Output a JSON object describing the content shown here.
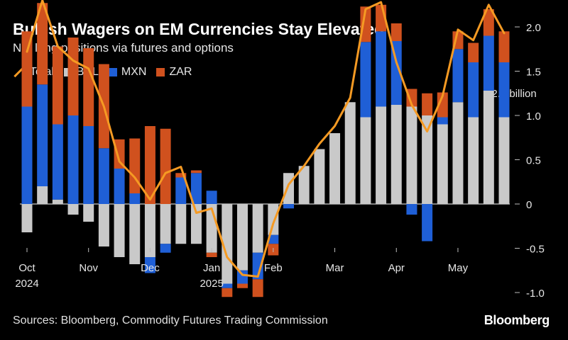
{
  "title": "Bullish Wagers on EM Currencies Stay Elevated",
  "subtitle": "Net long positions via futures and options",
  "legend": {
    "total": "Total",
    "brl": "BRL",
    "mxn": "MXN",
    "zar": "ZAR"
  },
  "source": "Sources: Bloomberg, Commodity Futures Trading Commission",
  "brand": "Bloomberg",
  "colors": {
    "BRL": "#c9c9c9",
    "MXN": "#1f5fd6",
    "ZAR": "#d0511e",
    "Total": "#f59a23"
  },
  "chart_data": {
    "type": "bar",
    "stacked": true,
    "overlay_line": "Total",
    "y_unit_label": "$2.5 billion",
    "ylim": [
      -1.0,
      2.5
    ],
    "yticks": [
      -1.0,
      -0.5,
      0,
      0.5,
      1.0,
      1.5,
      2.0
    ],
    "ytick_labels": [
      "-1.0",
      "-0.5",
      "0",
      "0.5",
      "1.0",
      "1.5",
      "2.0"
    ],
    "x_tick_labels": [
      {
        "month": "Oct",
        "year": "2024",
        "week": 0
      },
      {
        "month": "Nov",
        "year": "",
        "week": 4
      },
      {
        "month": "Dec",
        "year": "",
        "week": 8
      },
      {
        "month": "Jan",
        "year": "2025",
        "week": 12
      },
      {
        "month": "Feb",
        "year": "",
        "week": 16
      },
      {
        "month": "Mar",
        "year": "",
        "week": 20
      },
      {
        "month": "Apr",
        "year": "",
        "week": 24
      },
      {
        "month": "May",
        "year": "",
        "week": 28
      }
    ],
    "series": [
      {
        "name": "BRL",
        "values": [
          -0.32,
          0.2,
          0.05,
          -0.12,
          -0.2,
          -0.48,
          -0.6,
          -0.68,
          -0.6,
          -0.45,
          -0.45,
          -0.45,
          -0.55,
          -0.9,
          -0.75,
          -0.55,
          -0.35,
          0.35,
          0.43,
          0.62,
          0.8,
          1.15,
          0.98,
          1.1,
          1.12,
          1.1,
          1.0,
          0.9,
          1.15,
          0.98,
          1.28,
          0.98
        ]
      },
      {
        "name": "MXN",
        "values": [
          1.1,
          1.15,
          0.85,
          1.0,
          0.88,
          0.63,
          0.4,
          0.12,
          -0.18,
          -0.1,
          0.3,
          0.35,
          0.15,
          -0.05,
          -0.15,
          -0.3,
          -0.1,
          -0.05,
          0,
          0,
          0,
          0,
          0.85,
          0.85,
          0.72,
          -0.12,
          -0.42,
          0.08,
          0.6,
          0.62,
          0.62,
          0.62
        ]
      },
      {
        "name": "ZAR",
        "values": [
          0.85,
          0.92,
          0.88,
          0.88,
          0.88,
          0.95,
          0.33,
          0.62,
          0.88,
          0.85,
          0.05,
          0.03,
          -0.05,
          -0.1,
          -0.05,
          -0.2,
          -0.13,
          0,
          0,
          0,
          0,
          0,
          0.4,
          0.3,
          0.2,
          0.2,
          0.25,
          0.28,
          0.2,
          0.22,
          0.3,
          0.35
        ]
      }
    ],
    "total": [
      1.72,
      2.3,
      1.78,
      1.62,
      1.53,
      1.1,
      0.48,
      0.3,
      0.05,
      0.35,
      0.42,
      -0.1,
      -0.05,
      -0.6,
      -0.8,
      -0.82,
      -0.22,
      0.22,
      0.43,
      0.68,
      0.88,
      1.2,
      2.2,
      2.28,
      1.6,
      1.12,
      0.82,
      1.22,
      1.97,
      1.85,
      2.25,
      1.93
    ]
  }
}
